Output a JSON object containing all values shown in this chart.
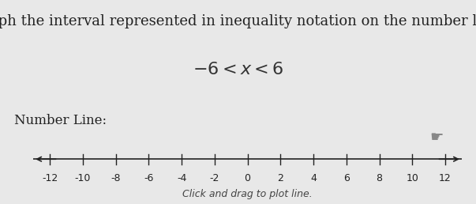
{
  "title_text": "Graph the interval represented in inequality notation on the number line.",
  "inequality_text": "$-6 < x < 6$",
  "number_line_label": "Number Line:",
  "click_drag_text": "Click and drag to plot line.",
  "bg_color": "#e8e8e8",
  "box_bg_color": "#f0f0f0",
  "x_min": -13,
  "x_max": 13,
  "tick_positions": [
    -12,
    -10,
    -8,
    -6,
    -4,
    -2,
    0,
    2,
    4,
    6,
    8,
    10,
    12
  ],
  "tick_labels": [
    "-12",
    "-10",
    "-8",
    "-6",
    "-4",
    "-2",
    "0",
    "2",
    "4",
    "6",
    "8",
    "10",
    "12"
  ],
  "title_fontsize": 13,
  "inequality_fontsize": 16,
  "label_fontsize": 12,
  "tick_fontsize": 9,
  "click_fontsize": 9,
  "line_color": "#222222",
  "title_color": "#222222",
  "inequality_color": "#333333"
}
